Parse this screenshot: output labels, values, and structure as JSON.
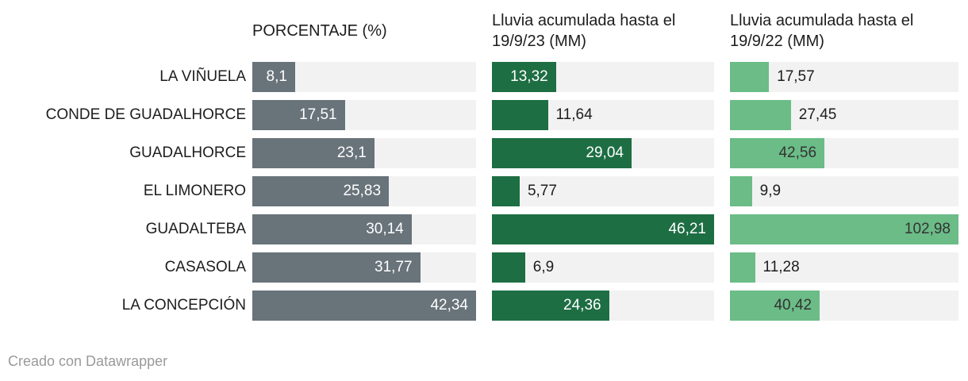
{
  "chart_data": {
    "type": "bar",
    "orientation": "horizontal",
    "title": "",
    "categories": [
      "LA VIÑUELA",
      "CONDE DE GUADALHORCE",
      "GUADALHORCE",
      "EL LIMONERO",
      "GUADALTEBA",
      "CASASOLA",
      "LA CONCEPCIÓN"
    ],
    "track_color": "#f2f2f2",
    "label_color": "#1d1d1d",
    "series": [
      {
        "name": "PORCENTAJE (%)",
        "values": [
          8.1,
          17.51,
          23.1,
          25.83,
          30.14,
          31.77,
          42.34
        ],
        "display_values": [
          "8,1",
          "17,51",
          "23,1",
          "25,83",
          "30,14",
          "31,77",
          "42,34"
        ],
        "axis_max": 42.34,
        "color": "#68737a",
        "inside_text_color": "#ffffff",
        "labels_inside": [
          true,
          true,
          true,
          true,
          true,
          true,
          true
        ]
      },
      {
        "name": "Lluvia acumulada hasta el 19/9/23 (MM)",
        "values": [
          13.32,
          11.64,
          29.04,
          5.77,
          46.21,
          6.9,
          24.36
        ],
        "display_values": [
          "13,32",
          "11,64",
          "29,04",
          "5,77",
          "46,21",
          "6,9",
          "24,36"
        ],
        "axis_max": 46.21,
        "color": "#1e6e44",
        "inside_text_color": "#ffffff",
        "labels_inside": [
          true,
          false,
          true,
          false,
          true,
          false,
          true
        ]
      },
      {
        "name": "Lluvia acumulada hasta el 19/9/22 (MM)",
        "values": [
          17.57,
          27.45,
          42.56,
          9.9,
          102.98,
          11.28,
          40.42
        ],
        "display_values": [
          "17,57",
          "27,45",
          "42,56",
          "9,9",
          "102,98",
          "11,28",
          "40,42"
        ],
        "axis_max": 102.98,
        "color": "#6bbc87",
        "inside_text_color": "#333333",
        "labels_inside": [
          false,
          false,
          true,
          false,
          true,
          false,
          true
        ]
      }
    ],
    "legend": "none",
    "grid": "off"
  },
  "footer": {
    "credit": "Creado con Datawrapper"
  }
}
